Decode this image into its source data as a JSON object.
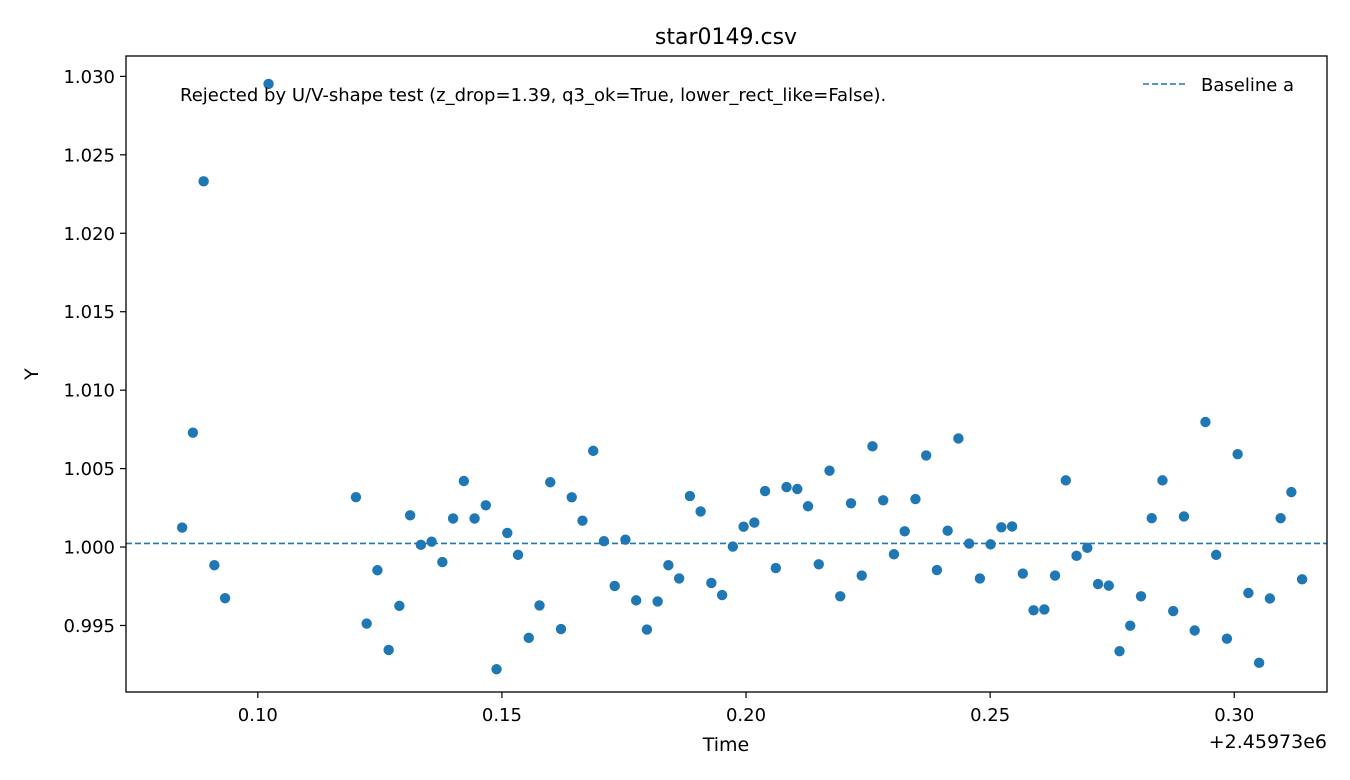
{
  "chart_data": {
    "type": "scatter",
    "title": "star0149.csv",
    "xlabel": "Time",
    "ylabel": "Y",
    "x_offset_label": "+2.45973e6",
    "xlim": [
      0.073,
      0.319
    ],
    "ylim": [
      0.99076,
      1.0313
    ],
    "xticks": [
      0.1,
      0.15,
      0.2,
      0.25,
      0.3
    ],
    "xtick_labels": [
      "0.10",
      "0.15",
      "0.20",
      "0.25",
      "0.30"
    ],
    "yticks": [
      0.995,
      1.0,
      1.005,
      1.01,
      1.015,
      1.02,
      1.025,
      1.03
    ],
    "ytick_labels": [
      "0.995",
      "1.000",
      "1.005",
      "1.010",
      "1.015",
      "1.020",
      "1.025",
      "1.030"
    ],
    "grid": false,
    "annotation": "Rejected by U/V-shape test (z_drop=1.39, q3_ok=True, lower_rect_like=False).",
    "legend": {
      "placement": "top-right",
      "entries": [
        {
          "label": "Baseline a",
          "style": "dashed-line",
          "color": "#1f77b4"
        }
      ]
    },
    "baseline": {
      "name": "Baseline a",
      "y": 1.00023,
      "color": "#1f77b4"
    },
    "series": [
      {
        "color": "#1f77b4",
        "points": [
          [
            0.0845,
            1.00124
          ],
          [
            0.0867,
            1.00729
          ],
          [
            0.0889,
            1.02331
          ],
          [
            0.0911,
            0.99884
          ],
          [
            0.0933,
            0.99674
          ],
          [
            0.1022,
            1.02952
          ],
          [
            0.1201,
            1.00318
          ],
          [
            0.1223,
            0.99512
          ],
          [
            0.1245,
            0.99852
          ],
          [
            0.1268,
            0.99344
          ],
          [
            0.129,
            0.99625
          ],
          [
            0.1312,
            1.00202
          ],
          [
            0.1334,
            1.00014
          ],
          [
            0.1356,
            1.00034
          ],
          [
            0.1378,
            0.99904
          ],
          [
            0.14,
            1.00182
          ],
          [
            0.1422,
            1.00421
          ],
          [
            0.1444,
            1.00182
          ],
          [
            0.1467,
            1.00266
          ],
          [
            0.1489,
            0.99221
          ],
          [
            0.1511,
            1.0009
          ],
          [
            0.1533,
            0.9995
          ],
          [
            0.1555,
            0.99421
          ],
          [
            0.1577,
            0.99628
          ],
          [
            0.1599,
            1.00413
          ],
          [
            0.1621,
            0.99477
          ],
          [
            0.1643,
            1.00317
          ],
          [
            0.1665,
            1.00168
          ],
          [
            0.1687,
            1.00613
          ],
          [
            0.1709,
            1.00037
          ],
          [
            0.1731,
            0.99752
          ],
          [
            0.1753,
            1.00047
          ],
          [
            0.1775,
            0.9966
          ],
          [
            0.1797,
            0.99474
          ],
          [
            0.1819,
            0.99653
          ],
          [
            0.1841,
            0.99884
          ],
          [
            0.1863,
            0.998
          ],
          [
            0.1885,
            1.00325
          ],
          [
            0.1907,
            1.00227
          ],
          [
            0.1929,
            0.99771
          ],
          [
            0.1951,
            0.99694
          ],
          [
            0.1973,
            1.00003
          ],
          [
            0.1995,
            1.0013
          ],
          [
            0.2017,
            1.00156
          ],
          [
            0.2039,
            1.00357
          ],
          [
            0.2061,
            0.99866
          ],
          [
            0.2083,
            1.00382
          ],
          [
            0.2105,
            1.0037
          ],
          [
            0.2127,
            1.0026
          ],
          [
            0.2149,
            0.9989
          ],
          [
            0.2171,
            1.00487
          ],
          [
            0.2193,
            0.99686
          ],
          [
            0.2215,
            1.00279
          ],
          [
            0.2237,
            0.99818
          ],
          [
            0.2259,
            1.00642
          ],
          [
            0.2281,
            1.00298
          ],
          [
            0.2303,
            0.99954
          ],
          [
            0.2325,
            1.001
          ],
          [
            0.2347,
            1.00306
          ],
          [
            0.2369,
            1.00584
          ],
          [
            0.2391,
            0.99853
          ],
          [
            0.2413,
            1.00104
          ],
          [
            0.2435,
            1.00692
          ],
          [
            0.2457,
            1.00022
          ],
          [
            0.2479,
            0.998
          ],
          [
            0.2501,
            1.00017
          ],
          [
            0.2523,
            1.00126
          ],
          [
            0.2545,
            1.00131
          ],
          [
            0.2567,
            0.99831
          ],
          [
            0.2589,
            0.99597
          ],
          [
            0.2611,
            0.99602
          ],
          [
            0.2633,
            0.99818
          ],
          [
            0.2655,
            1.00425
          ],
          [
            0.2677,
            0.99944
          ],
          [
            0.2699,
            0.99995
          ],
          [
            0.2721,
            0.99764
          ],
          [
            0.2743,
            0.99754
          ],
          [
            0.2765,
            0.99336
          ],
          [
            0.2787,
            0.99499
          ],
          [
            0.2809,
            0.99686
          ],
          [
            0.2831,
            1.00184
          ],
          [
            0.2853,
            1.00425
          ],
          [
            0.2875,
            0.99592
          ],
          [
            0.2897,
            1.00195
          ],
          [
            0.2919,
            0.99468
          ],
          [
            0.2941,
            1.00797
          ],
          [
            0.2963,
            0.9995
          ],
          [
            0.2985,
            0.99416
          ],
          [
            0.3007,
            1.00592
          ],
          [
            0.3029,
            0.99707
          ],
          [
            0.3051,
            0.99262
          ],
          [
            0.3073,
            0.99672
          ],
          [
            0.3095,
            1.00184
          ],
          [
            0.3117,
            1.0035
          ],
          [
            0.3139,
            0.99794
          ]
        ]
      }
    ]
  }
}
